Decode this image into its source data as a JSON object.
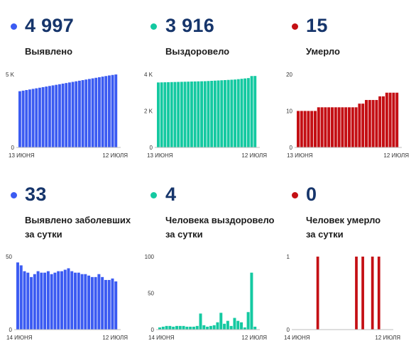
{
  "colors": {
    "blue": "#3b5bf2",
    "green": "#14c9a1",
    "red": "#c40f14"
  },
  "panels": [
    {
      "id": "detected-total",
      "value": "4 997",
      "label_lines": [
        "Выявлено"
      ],
      "color": "blue"
    },
    {
      "id": "recovered-total",
      "value": "3 916",
      "label_lines": [
        "Выздоровело"
      ],
      "color": "green"
    },
    {
      "id": "died-total",
      "value": "15",
      "label_lines": [
        "Умерло"
      ],
      "color": "red"
    },
    {
      "id": "detected-daily",
      "value": "33",
      "label_lines": [
        "Выявлено заболевших",
        "за сутки"
      ],
      "color": "blue"
    },
    {
      "id": "recovered-daily",
      "value": "4",
      "label_lines": [
        "Человека выздоровело",
        "за сутки"
      ],
      "color": "green"
    },
    {
      "id": "died-daily",
      "value": "0",
      "label_lines": [
        "Человек умерло",
        "за сутки"
      ],
      "color": "red"
    }
  ],
  "chart_data": [
    {
      "type": "bar",
      "title": "Выявлено",
      "color": "blue",
      "x_start_label": "13 июня",
      "x_end_label": "12 июля",
      "ylim": [
        0,
        5000
      ],
      "yticks": [
        0,
        5000
      ],
      "ytick_labels": [
        "0",
        "5 K"
      ],
      "values": [
        3850,
        3890,
        3930,
        3970,
        4010,
        4050,
        4090,
        4130,
        4170,
        4210,
        4250,
        4290,
        4330,
        4370,
        4410,
        4450,
        4490,
        4530,
        4570,
        4610,
        4650,
        4690,
        4730,
        4770,
        4810,
        4850,
        4890,
        4930,
        4964,
        4997
      ]
    },
    {
      "type": "bar",
      "title": "Выздоровело",
      "color": "green",
      "x_start_label": "13 июня",
      "x_end_label": "12 июля",
      "ylim": [
        0,
        4000
      ],
      "yticks": [
        0,
        2000,
        4000
      ],
      "ytick_labels": [
        "0",
        "2 K",
        "4 K"
      ],
      "values": [
        3560,
        3565,
        3570,
        3575,
        3580,
        3585,
        3590,
        3595,
        3600,
        3605,
        3610,
        3615,
        3620,
        3625,
        3630,
        3640,
        3650,
        3660,
        3670,
        3680,
        3690,
        3700,
        3710,
        3720,
        3740,
        3760,
        3780,
        3800,
        3912,
        3916
      ]
    },
    {
      "type": "bar",
      "title": "Умерло",
      "color": "red",
      "x_start_label": "13 июня",
      "x_end_label": "12 июля",
      "ylim": [
        0,
        20
      ],
      "yticks": [
        0,
        10,
        20
      ],
      "ytick_labels": [
        "0",
        "10",
        "20"
      ],
      "values": [
        10,
        10,
        10,
        10,
        10,
        10,
        11,
        11,
        11,
        11,
        11,
        11,
        11,
        11,
        11,
        11,
        11,
        11,
        12,
        12,
        13,
        13,
        13,
        13,
        14,
        14,
        15,
        15,
        15,
        15
      ]
    },
    {
      "type": "bar",
      "title": "Выявлено заболевших за сутки",
      "color": "blue",
      "x_start_label": "14 июня",
      "x_end_label": "12 июля",
      "ylim": [
        0,
        50
      ],
      "yticks": [
        0,
        50
      ],
      "ytick_labels": [
        "0",
        "50"
      ],
      "values": [
        46,
        44,
        40,
        39,
        36,
        38,
        40,
        39,
        39,
        40,
        38,
        39,
        40,
        40,
        41,
        42,
        40,
        39,
        39,
        38,
        38,
        37,
        36,
        36,
        38,
        36,
        34,
        34,
        35,
        33
      ]
    },
    {
      "type": "bar",
      "title": "Человека выздоровело за сутки",
      "color": "green",
      "x_start_label": "14 июня",
      "x_end_label": "12 июля",
      "ylim": [
        0,
        100
      ],
      "yticks": [
        0,
        50,
        100
      ],
      "ytick_labels": [
        "0",
        "50",
        "100"
      ],
      "values": [
        3,
        4,
        5,
        5,
        4,
        5,
        5,
        5,
        4,
        4,
        4,
        5,
        22,
        6,
        4,
        5,
        6,
        10,
        23,
        8,
        12,
        5,
        16,
        12,
        10,
        3,
        24,
        78,
        4
      ]
    },
    {
      "type": "bar",
      "title": "Человек умерло за сутки",
      "color": "red",
      "x_start_label": "14 июня",
      "x_end_label": "12 июля",
      "ylim": [
        0,
        1
      ],
      "yticks": [
        0,
        1
      ],
      "ytick_labels": [
        "0",
        "1"
      ],
      "values": [
        0,
        0,
        0,
        0,
        0,
        0,
        0,
        1,
        0,
        0,
        0,
        0,
        0,
        0,
        0,
        0,
        0,
        0,
        0,
        1,
        0,
        1,
        0,
        0,
        1,
        0,
        1,
        0,
        0,
        0
      ]
    }
  ]
}
